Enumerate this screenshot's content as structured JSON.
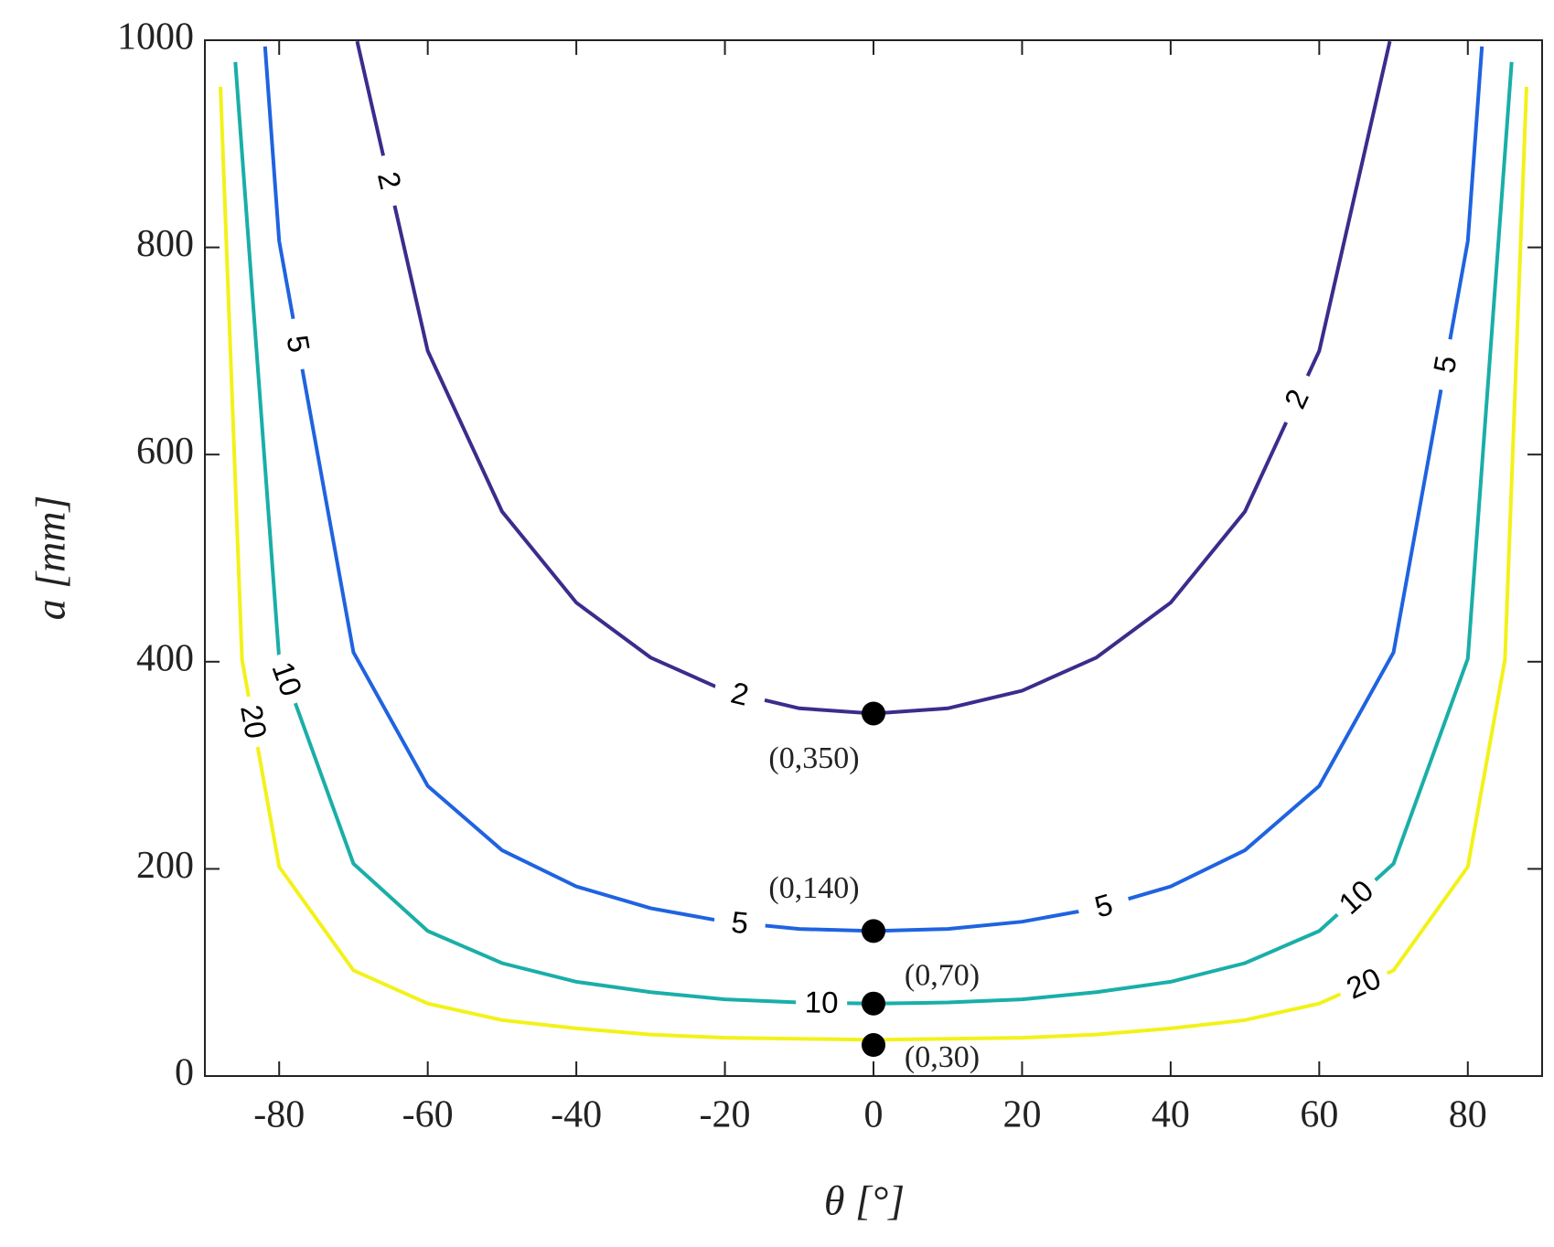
{
  "chart_data": {
    "type": "contour",
    "x_label": "θ [°]",
    "y_label": "a [mm]",
    "xlim": [
      -90,
      90
    ],
    "xticks": [
      -80,
      -60,
      -40,
      -20,
      0,
      20,
      40,
      60,
      80
    ],
    "ylim": [
      0,
      1000
    ],
    "yticks": [
      0,
      200,
      400,
      600,
      800,
      1000
    ],
    "series": [
      {
        "name": "2",
        "color": "#3b2c8c",
        "x": [
          -69.5,
          -60,
          -50,
          -40,
          -30,
          -20,
          -10,
          0,
          10,
          20,
          30,
          40,
          50,
          60,
          69.5
        ],
        "values": [
          999,
          700,
          545,
          457,
          404,
          372,
          355,
          350,
          355,
          372,
          404,
          457,
          545,
          700,
          999
        ]
      },
      {
        "name": "5",
        "color": "#1f63e0",
        "x": [
          -81.9,
          -80,
          -70,
          -60,
          -50,
          -40,
          -30,
          -20,
          -10,
          0,
          10,
          20,
          30,
          40,
          50,
          60,
          70,
          80,
          81.9
        ],
        "values": [
          994,
          806,
          409,
          280,
          218,
          183,
          162,
          149,
          142,
          140,
          142,
          149,
          162,
          183,
          218,
          280,
          409,
          806,
          994
        ]
      },
      {
        "name": "10",
        "color": "#1aaea8",
        "x": [
          -85.9,
          -80,
          -70,
          -60,
          -50,
          -40,
          -30,
          -20,
          -10,
          0,
          10,
          20,
          30,
          40,
          50,
          60,
          70,
          80,
          85.9
        ],
        "values": [
          979,
          403,
          205,
          140,
          109,
          91,
          81,
          74,
          71,
          70,
          71,
          74,
          81,
          91,
          109,
          140,
          205,
          403,
          979
        ]
      },
      {
        "name": "20",
        "color": "#f2f21a",
        "x": [
          -87.9,
          -85,
          -80,
          -70,
          -60,
          -50,
          -40,
          -30,
          -20,
          -10,
          0,
          10,
          20,
          30,
          40,
          50,
          60,
          70,
          80,
          85,
          87.9
        ],
        "values": [
          955,
          402,
          202,
          102,
          70,
          54,
          46,
          40,
          37,
          36,
          35,
          36,
          37,
          40,
          46,
          54,
          70,
          102,
          202,
          402,
          955
        ]
      }
    ],
    "points": {
      "x": [
        0,
        0,
        0,
        0
      ],
      "values": [
        350,
        140,
        70,
        30
      ],
      "labels": [
        "(0,350)",
        "(0,140)",
        "(0,70)",
        "(0,30)"
      ]
    }
  }
}
